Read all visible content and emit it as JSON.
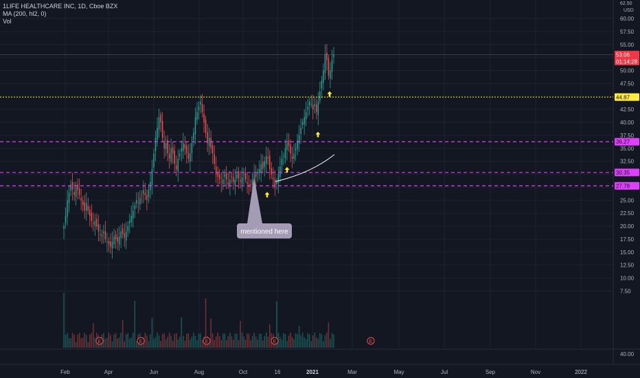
{
  "header": {
    "symbol_line": "1LIFE HEALTHCARE INC, 1D, Cboe BZX",
    "indicator_ma": "MA (200, hl2, 0)",
    "indicator_vol": "Vol",
    "currency": "USD",
    "top_label": "62.50"
  },
  "colors": {
    "background": "#131722",
    "up": "#26a69a",
    "down": "#ef5350",
    "level_line": "#e040fb",
    "current_price": "#f23645",
    "highlight": "#ffeb3b",
    "grid": "#1f2330"
  },
  "chart_data": {
    "type": "candlestick",
    "y_range": [
      6.0,
      62.5
    ],
    "price_ticks": [
      "60.00",
      "57.50",
      "55.00",
      "52.50",
      "50.00",
      "47.50",
      "45.00",
      "42.50",
      "40.00",
      "37.50",
      "35.00",
      "32.50",
      "30.00",
      "27.50",
      "25.00",
      "22.50",
      "20.00",
      "17.50",
      "15.00",
      "12.50",
      "10.00",
      "7.50"
    ],
    "volume_pane_tick": "40.00",
    "x_ticks": [
      "Feb",
      "Apr",
      "Jun",
      "Aug",
      "Oct",
      "16",
      "2021",
      "Mar",
      "May",
      "Jul",
      "Sep",
      "Nov",
      "2022"
    ],
    "price_labels": [
      {
        "label": "53.06",
        "value": 53.06,
        "kind": "current"
      },
      {
        "label": "01:14:28",
        "value": 51.7,
        "kind": "countdown"
      },
      {
        "label": "44.87",
        "value": 44.87,
        "kind": "highlight"
      },
      {
        "label": "36.27",
        "value": 36.27,
        "kind": "level"
      },
      {
        "label": "30.35",
        "value": 30.35,
        "kind": "level"
      },
      {
        "label": "27.78",
        "value": 27.78,
        "kind": "level"
      }
    ],
    "levels": [
      36.27,
      30.35,
      27.78
    ],
    "highlight_level": 44.87,
    "annotation": "mentioned here",
    "earnings_marker": "E",
    "series_closes": [
      20,
      22,
      25,
      26.5,
      28,
      27,
      26,
      27.5,
      27,
      26,
      25,
      24,
      23,
      24.5,
      23,
      22,
      21,
      20.5,
      21,
      20,
      19,
      18.5,
      18,
      19,
      17.5,
      17,
      16.5,
      16,
      17,
      18,
      17.5,
      17,
      18,
      19,
      18.5,
      17.8,
      19,
      20,
      21,
      22,
      23,
      24,
      25,
      24.5,
      25.5,
      26,
      27,
      26,
      25,
      27,
      28.5,
      31,
      34,
      37,
      39,
      41,
      40,
      37,
      35,
      36,
      34,
      33,
      35,
      34,
      32,
      31,
      33,
      34,
      35,
      36,
      35,
      34,
      33,
      34,
      36,
      38,
      41,
      42,
      43,
      44,
      42,
      40,
      38,
      36,
      37,
      35,
      34,
      32,
      30,
      29.5,
      29,
      28.5,
      29,
      30,
      29,
      28,
      29,
      29.5,
      28.5,
      29,
      30,
      29.2,
      28.6,
      29.4,
      30,
      29,
      28.2,
      27.5,
      28,
      29,
      30,
      29.5,
      30.5,
      31,
      32,
      31,
      32.5,
      33.5,
      33,
      31,
      30,
      29,
      27.5,
      28.5,
      30,
      31.5,
      33,
      33.5,
      35,
      36,
      35.5,
      34,
      33,
      34,
      35,
      36.5,
      37.5,
      39,
      40,
      41,
      42,
      43,
      44,
      43.5,
      42.5,
      43.5,
      42,
      44,
      46,
      48,
      50,
      53,
      52,
      49,
      50,
      52,
      53.06
    ],
    "volume_series_note": "relative volume heights drawn per candle"
  }
}
